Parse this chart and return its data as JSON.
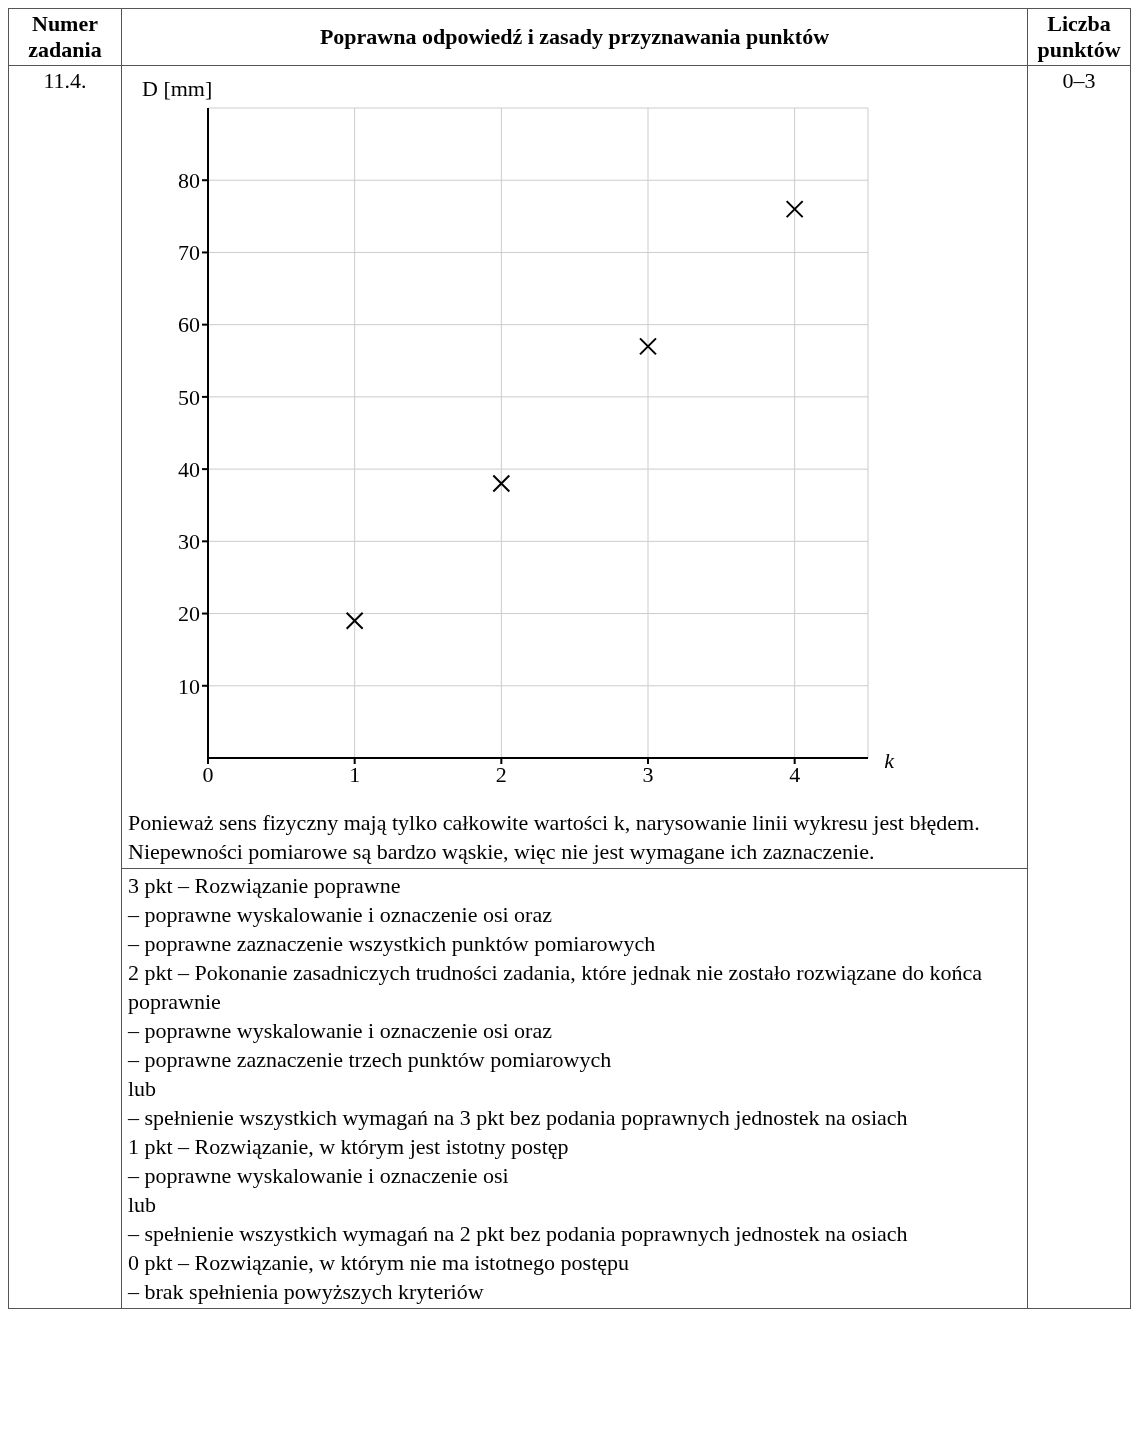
{
  "chart_data": {
    "type": "scatter",
    "xlabel": "k",
    "ylabel": "D [mm]",
    "x": [
      1,
      2,
      3,
      4
    ],
    "values": [
      19,
      38,
      57,
      76
    ],
    "color": "#000000",
    "marker": "cross",
    "xlim": [
      0,
      4.5
    ],
    "ylim": [
      0,
      90
    ],
    "xticks": [
      0,
      1,
      2,
      3,
      4
    ],
    "yticks": [
      10,
      20,
      30,
      40,
      50,
      60,
      70,
      80
    ],
    "grid": true,
    "annotations": [
      "Numer zadania",
      "Poprawna odpowiedź i zasady przyznawania punktów",
      "Liczba punktów",
      "11.4.",
      "0–3",
      "Ponieważ sens fizyczny mają tylko całkowite wartości k, narysowanie linii wykresu jest błędem.",
      "Niepewności pomiarowe są bardzo wąskie, więc nie jest wymagane ich zaznaczenie.",
      "3 pkt – Rozwiązanie poprawne",
      "– poprawne wyskalowanie i oznaczenie osi oraz",
      "– poprawne zaznaczenie wszystkich punktów pomiarowych",
      "2 pkt – Pokonanie zasadniczych trudności zadania, które jednak nie zostało rozwiązane do końca poprawnie",
      "– poprawne wyskalowanie i oznaczenie osi oraz",
      "– poprawne zaznaczenie trzech punktów pomiarowych",
      "lub",
      "– spełnienie wszystkich wymagań na 3 pkt bez podania poprawnych jednostek na osiach",
      "1 pkt – Rozwiązanie, w którym jest istotny postęp",
      "– poprawne wyskalowanie i oznaczenie osi",
      "lub",
      "– spełnienie wszystkich wymagań na 2 pkt bez podania poprawnych jednostek na osiach",
      "0 pkt – Rozwiązanie, w którym nie ma istotnego postępu",
      "– brak spełnienia powyższych kryteriów"
    ]
  }
}
